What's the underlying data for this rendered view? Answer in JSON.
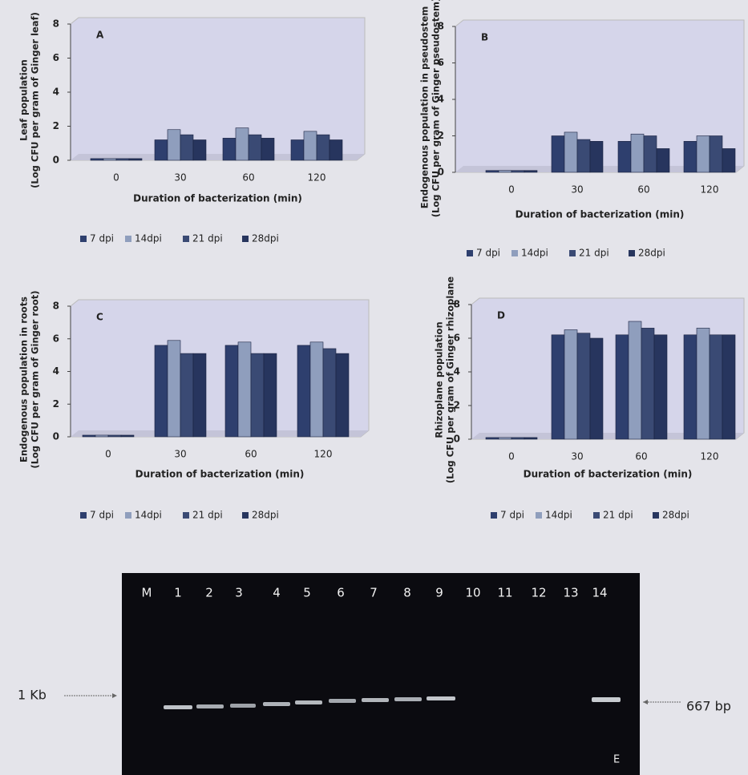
{
  "chart_data": [
    {
      "type": "bar",
      "title": "A",
      "ylabel": [
        "Leaf population",
        "(Log CFU per gram of Ginger leaf)"
      ],
      "xlabel": "Duration of bacterization (min)",
      "categories": [
        "0",
        "30",
        "60",
        "120"
      ],
      "ylim": [
        0,
        8
      ],
      "yticks": [
        0,
        2,
        4,
        6,
        8
      ],
      "series": [
        {
          "name": "7 dpi",
          "color": "#2e3f6e",
          "values": [
            0.1,
            1.2,
            1.3,
            1.2
          ]
        },
        {
          "name": "14dpi",
          "color": "#8f9ebd",
          "values": [
            0.1,
            1.8,
            1.9,
            1.7
          ]
        },
        {
          "name": "21 dpi",
          "color": "#3a4a74",
          "values": [
            0.1,
            1.5,
            1.5,
            1.5
          ]
        },
        {
          "name": "28dpi",
          "color": "#27355e",
          "values": [
            0.1,
            1.2,
            1.3,
            1.2
          ]
        }
      ]
    },
    {
      "type": "bar",
      "title": "B",
      "ylabel": [
        "Endogenous population in  pseudostem",
        "(Log CFU per gram of Ginger pseudostem)"
      ],
      "xlabel": "Duration of bacterization (min)",
      "categories": [
        "0",
        "30",
        "60",
        "120"
      ],
      "ylim": [
        0,
        8
      ],
      "yticks": [
        0,
        2,
        4,
        6,
        8
      ],
      "series": [
        {
          "name": "7 dpi",
          "color": "#2e3f6e",
          "values": [
            0.1,
            2.0,
            1.7,
            1.7
          ]
        },
        {
          "name": "14dpi",
          "color": "#8f9ebd",
          "values": [
            0.1,
            2.2,
            2.1,
            2.0
          ]
        },
        {
          "name": "21 dpi",
          "color": "#3a4a74",
          "values": [
            0.1,
            1.8,
            2.0,
            2.0
          ]
        },
        {
          "name": "28dpi",
          "color": "#27355e",
          "values": [
            0.1,
            1.7,
            1.3,
            1.3
          ]
        }
      ]
    },
    {
      "type": "bar",
      "title": "C",
      "ylabel": [
        "Endogenous population in roots",
        "(Log CFU per gram of Ginger root)"
      ],
      "xlabel": "Duration of bacterization (min)",
      "categories": [
        "0",
        "30",
        "60",
        "120"
      ],
      "ylim": [
        0,
        8
      ],
      "yticks": [
        0,
        2,
        4,
        6,
        8
      ],
      "series": [
        {
          "name": "7 dpi",
          "color": "#2e3f6e",
          "values": [
            0.1,
            5.6,
            5.6,
            5.6
          ]
        },
        {
          "name": "14dpi",
          "color": "#8f9ebd",
          "values": [
            0.1,
            5.9,
            5.8,
            5.8
          ]
        },
        {
          "name": "21 dpi",
          "color": "#3a4a74",
          "values": [
            0.1,
            5.1,
            5.1,
            5.4
          ]
        },
        {
          "name": "28dpi",
          "color": "#27355e",
          "values": [
            0.1,
            5.1,
            5.1,
            5.1
          ]
        }
      ]
    },
    {
      "type": "bar",
      "title": "D",
      "ylabel": [
        "Rhizoplane population",
        "(Log CFU per gram of Ginger rhizoplane"
      ],
      "xlabel": "Duration of bacterization (min)",
      "categories": [
        "0",
        "30",
        "60",
        "120"
      ],
      "ylim": [
        0,
        8
      ],
      "yticks": [
        0,
        2,
        4,
        6,
        8
      ],
      "series": [
        {
          "name": "7 dpi",
          "color": "#2e3f6e",
          "values": [
            0.1,
            6.2,
            6.2,
            6.2
          ]
        },
        {
          "name": "14dpi",
          "color": "#8f9ebd",
          "values": [
            0.1,
            6.5,
            7.0,
            6.6
          ]
        },
        {
          "name": "21 dpi",
          "color": "#3a4a74",
          "values": [
            0.1,
            6.3,
            6.6,
            6.2
          ]
        },
        {
          "name": "28dpi",
          "color": "#27355e",
          "values": [
            0.1,
            6.0,
            6.2,
            6.2
          ]
        }
      ]
    }
  ],
  "gel": {
    "lanes": [
      "M",
      "1",
      "2",
      "3",
      "4",
      "5",
      "6",
      "7",
      "8",
      "9",
      "10",
      "11",
      "12",
      "13",
      "14"
    ],
    "left_marker": "1 Kb",
    "right_marker": "667 bp",
    "panel": "E"
  }
}
